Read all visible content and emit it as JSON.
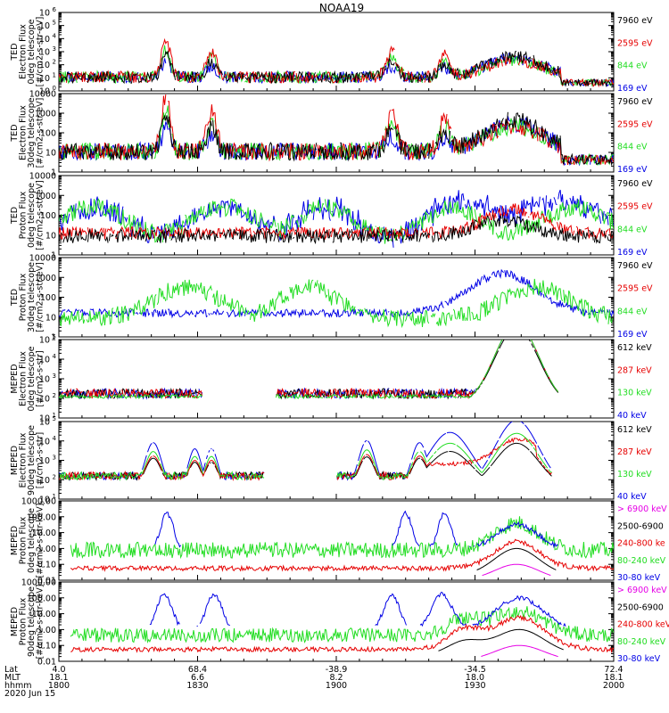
{
  "title": "NOAA19",
  "footer": {
    "row_labels": [
      "Lat",
      "MLT",
      "hhmm"
    ],
    "date": "2020 Jun 15",
    "columns": [
      {
        "lat": "4.0",
        "mlt": "18.1",
        "hhmm": "1800"
      },
      {
        "lat": "68.4",
        "mlt": "6.6",
        "hhmm": "1830"
      },
      {
        "lat": "-38.9",
        "mlt": "8.2",
        "hhmm": "1900"
      },
      {
        "lat": "-34.5",
        "mlt": "18.0",
        "hhmm": "1930"
      },
      {
        "lat": "72.4",
        "mlt": "18.1",
        "hhmm": "2000"
      }
    ]
  },
  "colors": {
    "black": "#000000",
    "red": "#e60000",
    "green": "#22dd22",
    "blue": "#0000e6",
    "magenta": "#e600e6"
  },
  "chart_data": [
    {
      "type": "line",
      "ylabel": [
        "TED",
        "Electron Flux",
        "0deg telescope",
        "[#/cm2-s-str-eV]"
      ],
      "y_scale": "log",
      "ylim": [
        1,
        1000000
      ],
      "ticks": [
        {
          "label": "10",
          "sup": "0",
          "exp": 0
        },
        {
          "label": "10",
          "sup": "1",
          "exp": 1
        },
        {
          "label": "10",
          "sup": "2",
          "exp": 2
        },
        {
          "label": "10",
          "sup": "3",
          "exp": 3
        },
        {
          "label": "10",
          "sup": "4",
          "exp": 4
        },
        {
          "label": "10",
          "sup": "5",
          "exp": 5
        },
        {
          "label": "10",
          "sup": "6",
          "exp": 6
        }
      ],
      "legend": [
        {
          "label": "7960 eV",
          "color": "#000000"
        },
        {
          "label": "2595 eV",
          "color": "#e60000"
        },
        {
          "label": "844 eV",
          "color": "#22dd22"
        },
        {
          "label": "169 eV",
          "color": "#0000e6"
        }
      ],
      "profile": "ted_e"
    },
    {
      "type": "line",
      "ylabel": [
        "TED",
        "Electron Flux",
        "30deg telescope",
        "[#/cm2-s-str-eV]"
      ],
      "y_scale": "log",
      "ylim": [
        1,
        10000
      ],
      "ticks": [
        {
          "label": "1",
          "exp": 0
        },
        {
          "label": "10",
          "exp": 1
        },
        {
          "label": "100",
          "exp": 2
        },
        {
          "label": "1000",
          "exp": 3
        },
        {
          "label": "10000",
          "exp": 4
        }
      ],
      "legend": [
        {
          "label": "7960 eV",
          "color": "#000000"
        },
        {
          "label": "2595 eV",
          "color": "#e60000"
        },
        {
          "label": "844 eV",
          "color": "#22dd22"
        },
        {
          "label": "169 eV",
          "color": "#0000e6"
        }
      ],
      "profile": "ted_e"
    },
    {
      "type": "line",
      "ylabel": [
        "TED",
        "Proton Flux",
        "0deg telescope",
        "[#/cm2-s-str-eV]"
      ],
      "y_scale": "log",
      "ylim": [
        1,
        10000
      ],
      "ticks": [
        {
          "label": "1",
          "exp": 0
        },
        {
          "label": "10",
          "exp": 1
        },
        {
          "label": "100",
          "exp": 2
        },
        {
          "label": "1000",
          "exp": 3
        },
        {
          "label": "10000",
          "exp": 4
        }
      ],
      "legend": [
        {
          "label": "7960 eV",
          "color": "#000000"
        },
        {
          "label": "2595 eV",
          "color": "#e60000"
        },
        {
          "label": "844 eV",
          "color": "#22dd22"
        },
        {
          "label": "169 eV",
          "color": "#0000e6"
        }
      ],
      "profile": "ted_p"
    },
    {
      "type": "line",
      "ylabel": [
        "TED",
        "Proton Flux",
        "30deg telescope",
        "[#/cm2-s-str-eV]"
      ],
      "y_scale": "log",
      "ylim": [
        1,
        10000
      ],
      "ticks": [
        {
          "label": "1",
          "exp": 0
        },
        {
          "label": "10",
          "exp": 1
        },
        {
          "label": "100",
          "exp": 2
        },
        {
          "label": "1000",
          "exp": 3
        },
        {
          "label": "10000",
          "exp": 4
        }
      ],
      "legend": [
        {
          "label": "7960 eV",
          "color": "#000000"
        },
        {
          "label": "2595 eV",
          "color": "#e60000"
        },
        {
          "label": "844 eV",
          "color": "#22dd22"
        },
        {
          "label": "169 eV",
          "color": "#0000e6"
        }
      ],
      "profile": "ted_p2"
    },
    {
      "type": "line",
      "ylabel": [
        "MEPED",
        "Electron Flux",
        "0deg telescope",
        "[#/cm2-s-str]"
      ],
      "y_scale": "log",
      "ylim": [
        10,
        100000
      ],
      "ticks": [
        {
          "label": "10",
          "sup": "1",
          "exp": 1
        },
        {
          "label": "10",
          "sup": "2",
          "exp": 2
        },
        {
          "label": "10",
          "sup": "3",
          "exp": 3
        },
        {
          "label": "10",
          "sup": "4",
          "exp": 4
        },
        {
          "label": "10",
          "sup": "5",
          "exp": 5
        }
      ],
      "legend": [
        {
          "label": "612 keV",
          "color": "#000000"
        },
        {
          "label": "287 keV",
          "color": "#e60000"
        },
        {
          "label": "130 keV",
          "color": "#22dd22"
        },
        {
          "label": "40 keV",
          "color": "#0000e6"
        }
      ],
      "profile": "meped_e0"
    },
    {
      "type": "line",
      "ylabel": [
        "MEPED",
        "Electron Flux",
        "90deg telescope",
        "[#/cm2-s-str]"
      ],
      "y_scale": "log",
      "ylim": [
        10,
        100000
      ],
      "ticks": [
        {
          "label": "10",
          "sup": "1",
          "exp": 1
        },
        {
          "label": "10",
          "sup": "2",
          "exp": 2
        },
        {
          "label": "10",
          "sup": "3",
          "exp": 3
        },
        {
          "label": "10",
          "sup": "4",
          "exp": 4
        },
        {
          "label": "10",
          "sup": "5",
          "exp": 5
        }
      ],
      "legend": [
        {
          "label": "612 keV",
          "color": "#000000"
        },
        {
          "label": "287 keV",
          "color": "#e60000"
        },
        {
          "label": "130 keV",
          "color": "#22dd22"
        },
        {
          "label": "40 keV",
          "color": "#0000e6"
        }
      ],
      "profile": "meped_e90"
    },
    {
      "type": "line",
      "ylabel": [
        "MEPED",
        "Proton Flux",
        "0deg telescope",
        "[#/cm2-s-str-keV]"
      ],
      "y_scale": "log",
      "ylim": [
        0.01,
        1000
      ],
      "ticks": [
        {
          "label": "0.01",
          "exp": -2
        },
        {
          "label": "0.10",
          "exp": -1
        },
        {
          "label": "1.00",
          "exp": 0
        },
        {
          "label": "10.00",
          "exp": 1
        },
        {
          "label": "100.00",
          "exp": 2
        },
        {
          "label": "1000.00",
          "exp": 3
        }
      ],
      "legend": [
        {
          "label": "> 6900 keV",
          "color": "#e600e6"
        },
        {
          "label": "2500-6900",
          "color": "#000000"
        },
        {
          "label": "240-800 ke",
          "color": "#e60000"
        },
        {
          "label": "80-240 keV",
          "color": "#22dd22"
        },
        {
          "label": "30-80 keV",
          "color": "#0000e6"
        }
      ],
      "profile": "meped_p0"
    },
    {
      "type": "line",
      "ylabel": [
        "MEPED",
        "Proton Flux",
        "90deg telescope",
        "[#/cm2-s-str-keV]"
      ],
      "y_scale": "log",
      "ylim": [
        0.01,
        1000
      ],
      "ticks": [
        {
          "label": "0.01",
          "exp": -2
        },
        {
          "label": "0.10",
          "exp": -1
        },
        {
          "label": "1.00",
          "exp": 0
        },
        {
          "label": "10.00",
          "exp": 1
        },
        {
          "label": "100.00",
          "exp": 2
        },
        {
          "label": "1000.00",
          "exp": 3
        }
      ],
      "legend": [
        {
          "label": "> 6900 keV",
          "color": "#e600e6"
        },
        {
          "label": "2500-6900",
          "color": "#000000"
        },
        {
          "label": "240-800 keV",
          "color": "#e60000"
        },
        {
          "label": "80-240 keV",
          "color": "#22dd22"
        },
        {
          "label": "30-80 keV",
          "color": "#0000e6"
        }
      ],
      "profile": "meped_p90"
    }
  ]
}
